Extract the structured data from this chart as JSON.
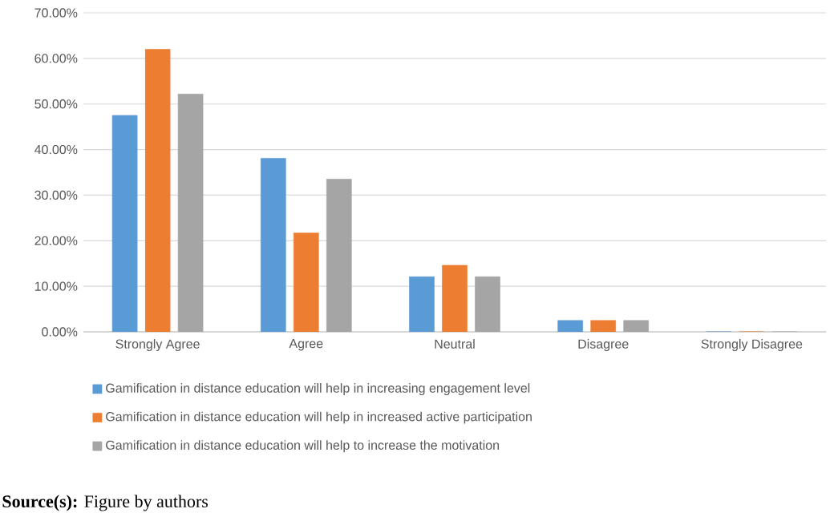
{
  "chart_data": {
    "type": "bar",
    "categories": [
      "Strongly Agree",
      "Agree",
      "Neutral",
      "Disagree",
      "Strongly Disagree"
    ],
    "series": [
      {
        "name": "Gamification in distance education will help in increasing engagement level",
        "color": "#5b9bd5",
        "values": [
          47.5,
          38.1,
          12.1,
          2.5,
          0
        ]
      },
      {
        "name": "Gamification in distance education will help in increased active participation",
        "color": "#ed7d31",
        "values": [
          62.0,
          21.7,
          14.6,
          2.5,
          0
        ]
      },
      {
        "name": "Gamification in distance education will help to increase the motivation",
        "color": "#a5a5a5",
        "values": [
          52.2,
          33.5,
          12.1,
          2.5,
          0
        ]
      }
    ],
    "ylim": [
      0,
      70
    ],
    "yticks": [
      {
        "value": 0,
        "label": "0.00%"
      },
      {
        "value": 10,
        "label": "10.00%"
      },
      {
        "value": 20,
        "label": "20.00%"
      },
      {
        "value": 30,
        "label": "30.00%"
      },
      {
        "value": 40,
        "label": "40.00%"
      },
      {
        "value": 50,
        "label": "50.00%"
      },
      {
        "value": 60,
        "label": "60.00%"
      },
      {
        "value": 70,
        "label": "70.00%"
      }
    ],
    "grid": "y",
    "legend": "bottom",
    "annotations": [
      "**Source(s):** Figure by authors"
    ]
  }
}
